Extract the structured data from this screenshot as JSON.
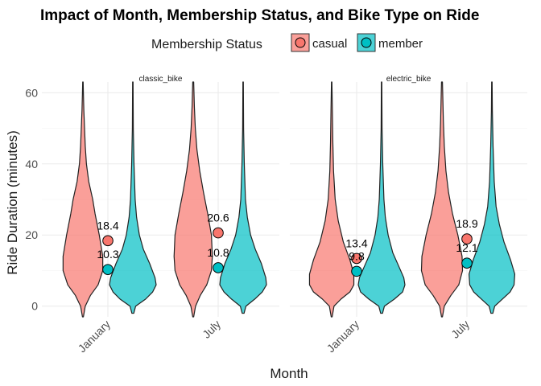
{
  "chart_data": {
    "type": "violin",
    "title": "Impact of Month, Membership Status, and Bike Type on Ride",
    "xlabel": "Month",
    "ylabel": "Ride Duration (minutes)",
    "ylim": [
      -3,
      63
    ],
    "yticks": [
      0,
      20,
      40,
      60
    ],
    "categories": [
      "January",
      "July"
    ],
    "legend": {
      "title": "Membership Status",
      "position": "top",
      "entries": [
        {
          "name": "casual",
          "color": "#F8766D"
        },
        {
          "name": "member",
          "color": "#00BFC4"
        }
      ]
    },
    "facets": [
      {
        "name": "classic_bike",
        "means": [
          {
            "month": "January",
            "status": "casual",
            "value": 18.4
          },
          {
            "month": "January",
            "status": "member",
            "value": 10.3
          },
          {
            "month": "July",
            "status": "casual",
            "value": 20.6
          },
          {
            "month": "July",
            "status": "member",
            "value": 10.8
          }
        ]
      },
      {
        "name": "electric_bike",
        "means": [
          {
            "month": "January",
            "status": "casual",
            "value": 13.4
          },
          {
            "month": "January",
            "status": "member",
            "value": 9.8
          },
          {
            "month": "July",
            "status": "casual",
            "value": 18.9
          },
          {
            "month": "July",
            "status": "member",
            "value": 12.1
          }
        ]
      }
    ],
    "violin_shapes": [
      {
        "facet": "classic_bike",
        "month": "January",
        "status": "casual",
        "profile": [
          [
            -3,
            0.02
          ],
          [
            0,
            0.1
          ],
          [
            3,
            0.32
          ],
          [
            6,
            0.65
          ],
          [
            10,
            0.85
          ],
          [
            14,
            0.85
          ],
          [
            20,
            0.7
          ],
          [
            26,
            0.52
          ],
          [
            30,
            0.42
          ],
          [
            35,
            0.25
          ],
          [
            40,
            0.15
          ],
          [
            45,
            0.1
          ],
          [
            50,
            0.07
          ],
          [
            55,
            0.04
          ],
          [
            60,
            0.02
          ],
          [
            63,
            0.01
          ]
        ]
      },
      {
        "facet": "classic_bike",
        "month": "January",
        "status": "member",
        "profile": [
          [
            -2,
            0.04
          ],
          [
            0,
            0.12
          ],
          [
            2,
            0.55
          ],
          [
            4,
            0.85
          ],
          [
            6,
            1.0
          ],
          [
            8,
            0.95
          ],
          [
            12,
            0.72
          ],
          [
            16,
            0.45
          ],
          [
            20,
            0.28
          ],
          [
            25,
            0.16
          ],
          [
            30,
            0.1
          ],
          [
            40,
            0.05
          ],
          [
            50,
            0.02
          ],
          [
            63,
            0.01
          ]
        ]
      },
      {
        "facet": "classic_bike",
        "month": "July",
        "status": "casual",
        "profile": [
          [
            -3,
            0.02
          ],
          [
            0,
            0.1
          ],
          [
            3,
            0.3
          ],
          [
            6,
            0.58
          ],
          [
            10,
            0.78
          ],
          [
            14,
            0.82
          ],
          [
            20,
            0.78
          ],
          [
            26,
            0.62
          ],
          [
            32,
            0.44
          ],
          [
            38,
            0.28
          ],
          [
            44,
            0.16
          ],
          [
            50,
            0.09
          ],
          [
            56,
            0.05
          ],
          [
            63,
            0.02
          ]
        ]
      },
      {
        "facet": "classic_bike",
        "month": "July",
        "status": "member",
        "profile": [
          [
            -2,
            0.04
          ],
          [
            0,
            0.12
          ],
          [
            2,
            0.5
          ],
          [
            4,
            0.82
          ],
          [
            6,
            1.0
          ],
          [
            8,
            0.97
          ],
          [
            12,
            0.78
          ],
          [
            16,
            0.52
          ],
          [
            20,
            0.32
          ],
          [
            25,
            0.18
          ],
          [
            30,
            0.1
          ],
          [
            40,
            0.05
          ],
          [
            50,
            0.02
          ],
          [
            63,
            0.01
          ]
        ]
      },
      {
        "facet": "electric_bike",
        "month": "January",
        "status": "casual",
        "profile": [
          [
            -3,
            0.02
          ],
          [
            0,
            0.1
          ],
          [
            2,
            0.4
          ],
          [
            4,
            0.78
          ],
          [
            6,
            0.95
          ],
          [
            9,
            0.95
          ],
          [
            13,
            0.78
          ],
          [
            18,
            0.5
          ],
          [
            24,
            0.28
          ],
          [
            30,
            0.15
          ],
          [
            38,
            0.08
          ],
          [
            46,
            0.05
          ],
          [
            55,
            0.03
          ],
          [
            63,
            0.01
          ]
        ]
      },
      {
        "facet": "electric_bike",
        "month": "January",
        "status": "member",
        "profile": [
          [
            -2,
            0.04
          ],
          [
            0,
            0.12
          ],
          [
            2,
            0.55
          ],
          [
            4,
            0.9
          ],
          [
            6,
            1.0
          ],
          [
            8,
            0.95
          ],
          [
            11,
            0.75
          ],
          [
            15,
            0.48
          ],
          [
            20,
            0.28
          ],
          [
            25,
            0.16
          ],
          [
            30,
            0.1
          ],
          [
            40,
            0.05
          ],
          [
            50,
            0.02
          ],
          [
            63,
            0.01
          ]
        ]
      },
      {
        "facet": "electric_bike",
        "month": "July",
        "status": "casual",
        "profile": [
          [
            -3,
            0.02
          ],
          [
            0,
            0.1
          ],
          [
            3,
            0.38
          ],
          [
            6,
            0.72
          ],
          [
            10,
            0.88
          ],
          [
            14,
            0.86
          ],
          [
            20,
            0.68
          ],
          [
            26,
            0.45
          ],
          [
            32,
            0.28
          ],
          [
            38,
            0.17
          ],
          [
            45,
            0.1
          ],
          [
            52,
            0.06
          ],
          [
            63,
            0.02
          ]
        ]
      },
      {
        "facet": "electric_bike",
        "month": "July",
        "status": "member",
        "profile": [
          [
            -2,
            0.04
          ],
          [
            0,
            0.12
          ],
          [
            2,
            0.45
          ],
          [
            4,
            0.78
          ],
          [
            6,
            0.95
          ],
          [
            9,
            0.98
          ],
          [
            13,
            0.8
          ],
          [
            18,
            0.52
          ],
          [
            23,
            0.32
          ],
          [
            28,
            0.18
          ],
          [
            35,
            0.1
          ],
          [
            45,
            0.05
          ],
          [
            55,
            0.02
          ],
          [
            63,
            0.01
          ]
        ]
      }
    ]
  }
}
